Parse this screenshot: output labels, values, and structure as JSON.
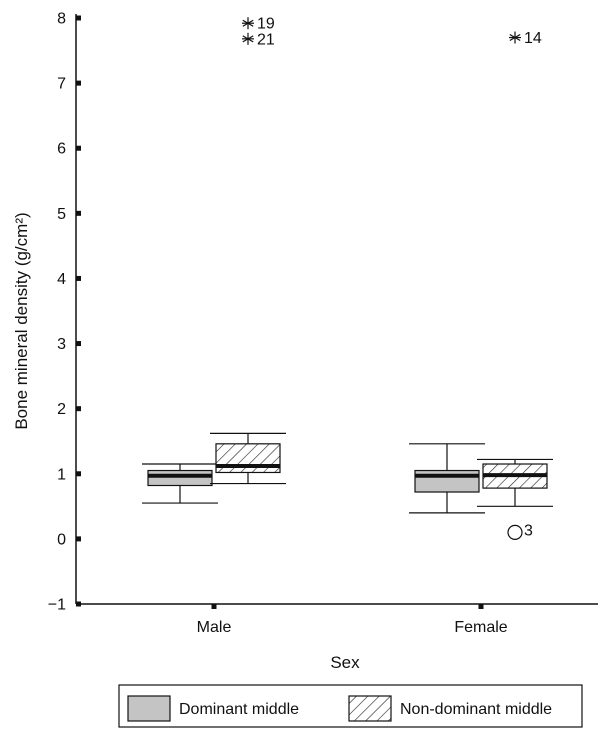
{
  "chart_data": {
    "type": "box",
    "xlabel": "Sex",
    "ylabel": "Bone mineral density (g/cm²)",
    "ylim": [
      -1,
      8
    ],
    "yticks": [
      "−1",
      "0",
      "1",
      "2",
      "3",
      "4",
      "5",
      "6",
      "7",
      "8"
    ],
    "categories": [
      "Male",
      "Female"
    ],
    "legend": {
      "placement": "bottom"
    },
    "series": [
      {
        "name": "Dominant middle",
        "fill": "#c4c4c4",
        "pattern": "solid",
        "boxes": [
          {
            "category": "Male",
            "whisker_low": 0.55,
            "q1": 0.82,
            "median": 0.97,
            "q3": 1.05,
            "whisker_high": 1.15
          },
          {
            "category": "Female",
            "whisker_low": 0.4,
            "q1": 0.72,
            "median": 0.97,
            "q3": 1.05,
            "whisker_high": 1.46
          }
        ]
      },
      {
        "name": "Non-dominant middle",
        "fill": "#ffffff",
        "pattern": "hatch",
        "boxes": [
          {
            "category": "Male",
            "whisker_low": 0.85,
            "q1": 1.02,
            "median": 1.12,
            "q3": 1.46,
            "whisker_high": 1.62
          },
          {
            "category": "Female",
            "whisker_low": 0.5,
            "q1": 0.78,
            "median": 0.98,
            "q3": 1.15,
            "whisker_high": 1.22
          }
        ]
      }
    ],
    "outliers": [
      {
        "category": "Male",
        "series": "Non-dominant middle",
        "marker": "star",
        "y": 7.92,
        "label": "19"
      },
      {
        "category": "Male",
        "series": "Non-dominant middle",
        "marker": "star",
        "y": 7.68,
        "label": "21"
      },
      {
        "category": "Female",
        "series": "Non-dominant middle",
        "marker": "star",
        "y": 7.7,
        "label": "14"
      },
      {
        "category": "Female",
        "series": "Non-dominant middle",
        "marker": "circle",
        "y": 0.1,
        "label": "3"
      }
    ]
  }
}
